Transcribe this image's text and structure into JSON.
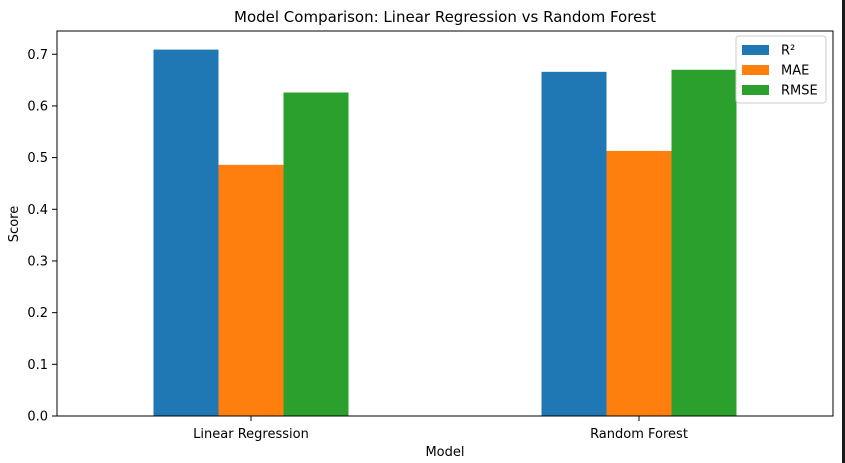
{
  "chart_data": {
    "type": "bar",
    "title": "Model Comparison: Linear Regression vs Random Forest",
    "xlabel": "Model",
    "ylabel": "Score",
    "categories": [
      "Linear Regression",
      "Random Forest"
    ],
    "series": [
      {
        "name": "R²",
        "color": "#1f77b4",
        "values": [
          0.709,
          0.666
        ]
      },
      {
        "name": "MAE",
        "color": "#ff7f0e",
        "values": [
          0.486,
          0.513
        ]
      },
      {
        "name": "RMSE",
        "color": "#2ca02c",
        "values": [
          0.626,
          0.67
        ]
      }
    ],
    "ylim": [
      0.0,
      0.745
    ],
    "yticks": [
      0.0,
      0.1,
      0.2,
      0.3,
      0.4,
      0.5,
      0.6,
      0.7
    ],
    "ytick_labels": [
      "0.0",
      "0.1",
      "0.2",
      "0.3",
      "0.4",
      "0.5",
      "0.6",
      "0.7"
    ],
    "grid": false,
    "legend_position": "top-right"
  }
}
